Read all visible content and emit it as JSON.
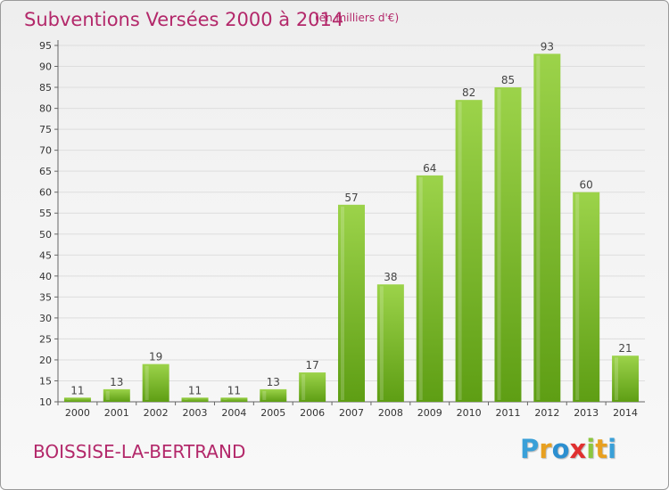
{
  "header": {
    "title": "Subventions Versées 2000 à 2014",
    "unit": "(en milliers d'€)"
  },
  "footer": {
    "commune": "BOISSISE-LA-BERTRAND",
    "logo": "Proxiti",
    "logo_colors": [
      "#3aa0d8",
      "#e8a020",
      "#2c8fd0",
      "#e03030",
      "#8cc63f",
      "#e8a020",
      "#3aa0d8"
    ]
  },
  "colors": {
    "bar_top": "#9cd34a",
    "bar_bottom": "#5e9e14",
    "grid": "#dddddd",
    "text_accent": "#b3286a"
  },
  "chart_data": {
    "type": "bar",
    "title": "Subventions Versées 2000 à 2014",
    "categories": [
      "2000",
      "2001",
      "2002",
      "2003",
      "2004",
      "2005",
      "2006",
      "2007",
      "2008",
      "2009",
      "2010",
      "2011",
      "2012",
      "2013",
      "2014"
    ],
    "values": [
      11,
      13,
      19,
      11,
      11,
      13,
      17,
      57,
      38,
      64,
      82,
      85,
      93,
      60,
      21
    ],
    "xlabel": "",
    "ylabel": "",
    "ylim": [
      10,
      95
    ],
    "yticks": [
      10,
      15,
      20,
      25,
      30,
      35,
      40,
      45,
      50,
      55,
      60,
      65,
      70,
      75,
      80,
      85,
      90,
      95
    ],
    "grid": true,
    "legend": "none"
  }
}
